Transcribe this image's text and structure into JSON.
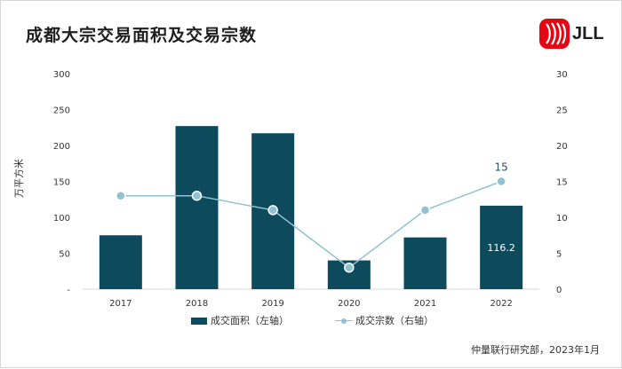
{
  "title": "成都大宗交易面积及交易宗数",
  "logo_text": "JLL",
  "source": "仲量联行研究部，2023年1月",
  "chart_data": {
    "type": "bar",
    "categories": [
      "2017",
      "2018",
      "2019",
      "2020",
      "2021",
      "2022"
    ],
    "series": [
      {
        "name": "成交面积（左轴）",
        "type": "bar",
        "axis": "left",
        "values": [
          75,
          227,
          217,
          40,
          72,
          116.2
        ]
      },
      {
        "name": "成交宗数（右轴）",
        "type": "line",
        "axis": "right",
        "values": [
          13,
          13,
          11,
          3,
          11,
          15
        ]
      }
    ],
    "data_labels": {
      "bar_2022": "116.2",
      "line_2022": "15"
    },
    "ylabel": "万平方米",
    "ylim_left": [
      0,
      300
    ],
    "ylim_right": [
      0,
      30
    ],
    "left_ticks": [
      "-",
      "50",
      "100",
      "150",
      "200",
      "250",
      "300"
    ],
    "right_ticks": [
      "0",
      "5",
      "10",
      "15",
      "20",
      "25",
      "30"
    ],
    "colors": {
      "bar": "#0d4a5c",
      "line": "#8fc2d2",
      "label_dark": "#2a4f61",
      "logo_red": "#e30613"
    },
    "legend_position": "bottom"
  }
}
